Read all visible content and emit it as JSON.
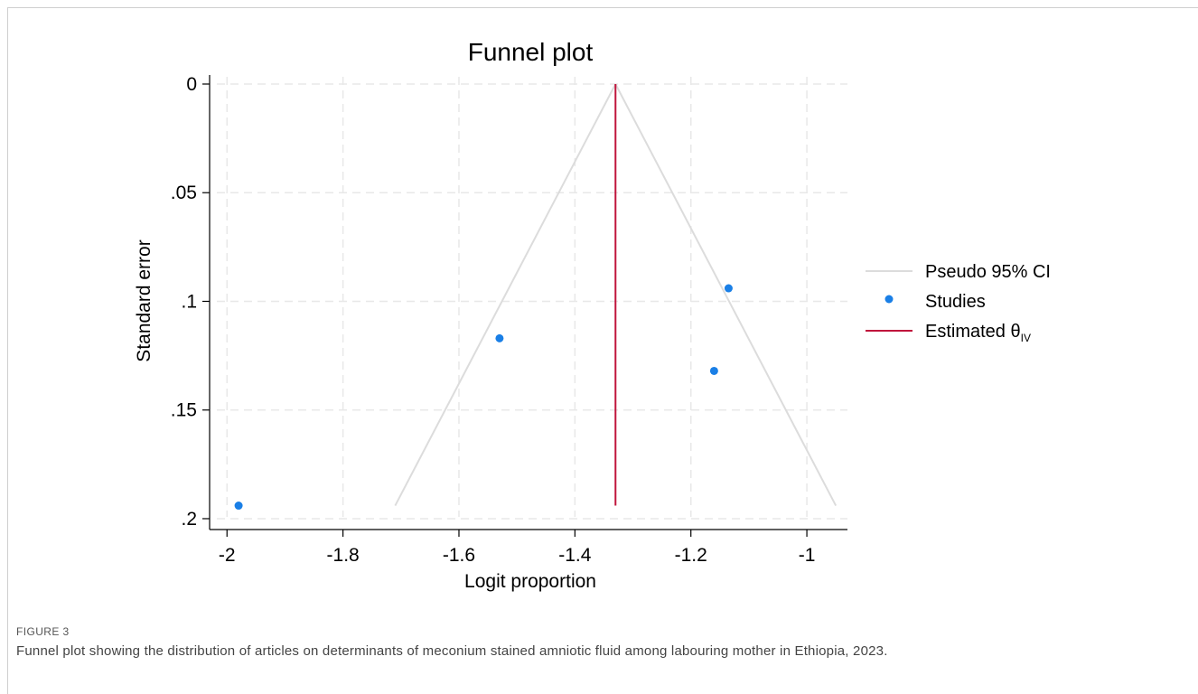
{
  "chart_data": {
    "type": "scatter",
    "title": "Funnel plot",
    "xlabel": "Logit proportion",
    "ylabel": "Standard error",
    "xlim": [
      -2.03,
      -0.93
    ],
    "ylim": [
      0,
      0.205
    ],
    "y_reversed": true,
    "grid": true,
    "legend_position": "right",
    "xticks": [
      -2,
      -1.8,
      -1.6,
      -1.4,
      -1.2,
      -1
    ],
    "xtick_labels": [
      "-2",
      "-1.8",
      "-1.6",
      "-1.4",
      "-1.2",
      "-1"
    ],
    "yticks": [
      0,
      0.05,
      0.1,
      0.15,
      0.2
    ],
    "ytick_labels": [
      "0",
      ".05",
      ".1",
      ".15",
      ".2"
    ],
    "series": [
      {
        "name": "Pseudo 95% CI",
        "kind": "line",
        "color": "#dcdcdc",
        "segments": [
          [
            [
              -1.33,
              0
            ],
            [
              -1.71,
              0.194
            ]
          ],
          [
            [
              -1.33,
              0
            ],
            [
              -0.95,
              0.194
            ]
          ]
        ]
      },
      {
        "name": "Studies",
        "kind": "scatter",
        "color": "#1a7fe6",
        "points": [
          {
            "x": -1.98,
            "y": 0.194
          },
          {
            "x": -1.53,
            "y": 0.117
          },
          {
            "x": -1.135,
            "y": 0.094
          },
          {
            "x": -1.16,
            "y": 0.132
          }
        ]
      },
      {
        "name": "Estimated θIV",
        "name_main": "Estimated θ",
        "name_sub": "IV",
        "kind": "vline",
        "color": "#c0143c",
        "x": -1.33,
        "y_range": [
          0,
          0.194
        ]
      }
    ]
  },
  "figure": {
    "label": "FIGURE 3",
    "caption": "Funnel plot showing the distribution of articles on determinants of meconium stained amniotic fluid among labouring mother in Ethiopia, 2023."
  }
}
